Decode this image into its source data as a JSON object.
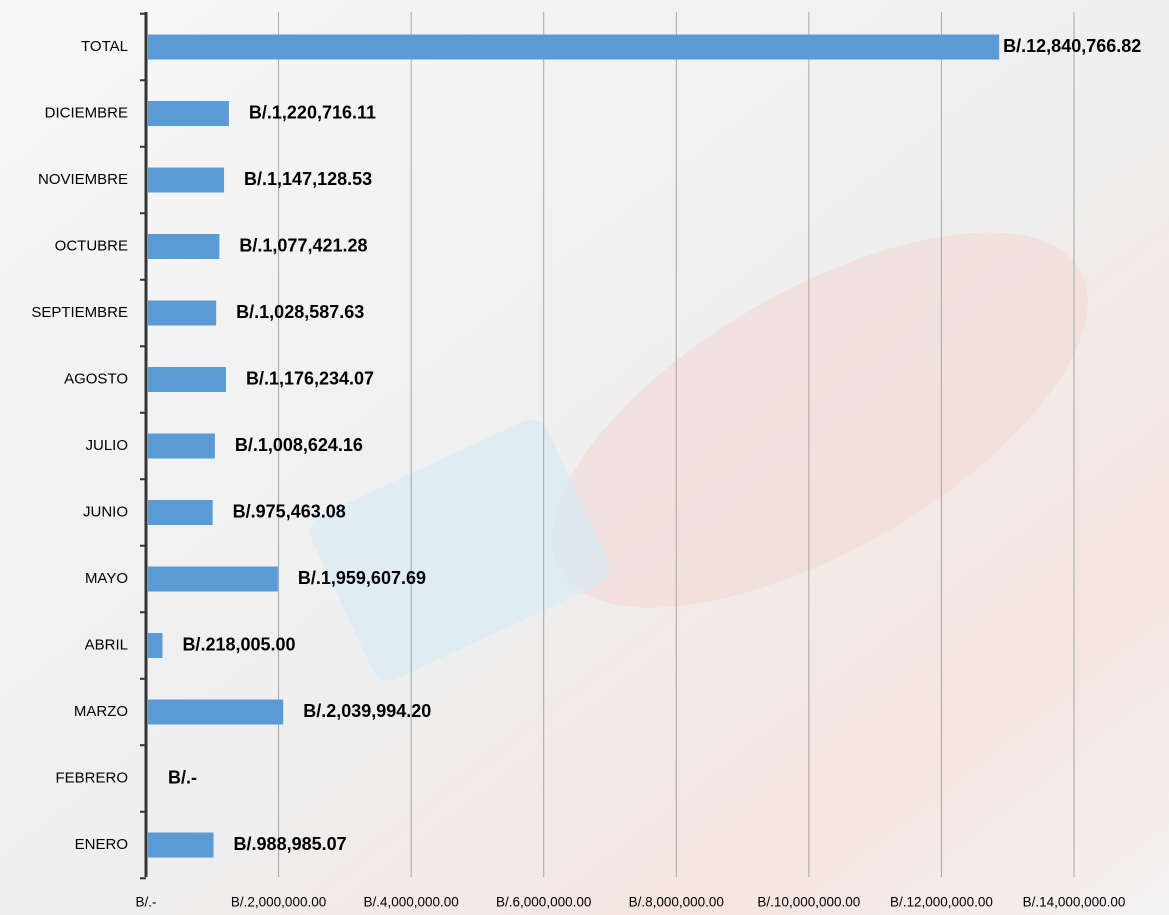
{
  "chart_data": {
    "type": "barh",
    "categories": [
      "TOTAL",
      "DICIEMBRE",
      "NOVIEMBRE",
      "OCTUBRE",
      "SEPTIEMBRE",
      "AGOSTO",
      "JULIO",
      "JUNIO",
      "MAYO",
      "ABRIL",
      "MARZO",
      "FEBRERO",
      "ENERO"
    ],
    "values": [
      12840766.82,
      1220716.11,
      1147128.53,
      1077421.28,
      1028587.63,
      1176234.07,
      1008624.16,
      975463.08,
      1959607.69,
      218005.0,
      2039994.2,
      0,
      988985.07
    ],
    "value_labels": [
      "B/.12,840,766.82",
      "B/.1,220,716.11",
      "B/.1,147,128.53",
      "B/.1,077,421.28",
      "B/.1,028,587.63",
      "B/.1,176,234.07",
      "B/.1,008,624.16",
      "B/.975,463.08",
      "B/.1,959,607.69",
      "B/.218,005.00",
      "B/.2,039,994.20",
      "B/.-",
      "B/.988,985.07"
    ],
    "color": "#5b9bd5",
    "xlim": [
      0,
      14000000
    ],
    "xticks": [
      {
        "value": 0,
        "label": "B/.-"
      },
      {
        "value": 2000000,
        "label": "B/.2,000,000.00"
      },
      {
        "value": 4000000,
        "label": "B/.4,000,000.00"
      },
      {
        "value": 6000000,
        "label": "B/.6,000,000.00"
      },
      {
        "value": 8000000,
        "label": "B/.8,000,000.00"
      },
      {
        "value": 10000000,
        "label": "B/.10,000,000.00"
      },
      {
        "value": 12000000,
        "label": "B/.12,000,000.00"
      },
      {
        "value": 14000000,
        "label": "B/.14,000,000.00"
      }
    ],
    "grid": true
  }
}
